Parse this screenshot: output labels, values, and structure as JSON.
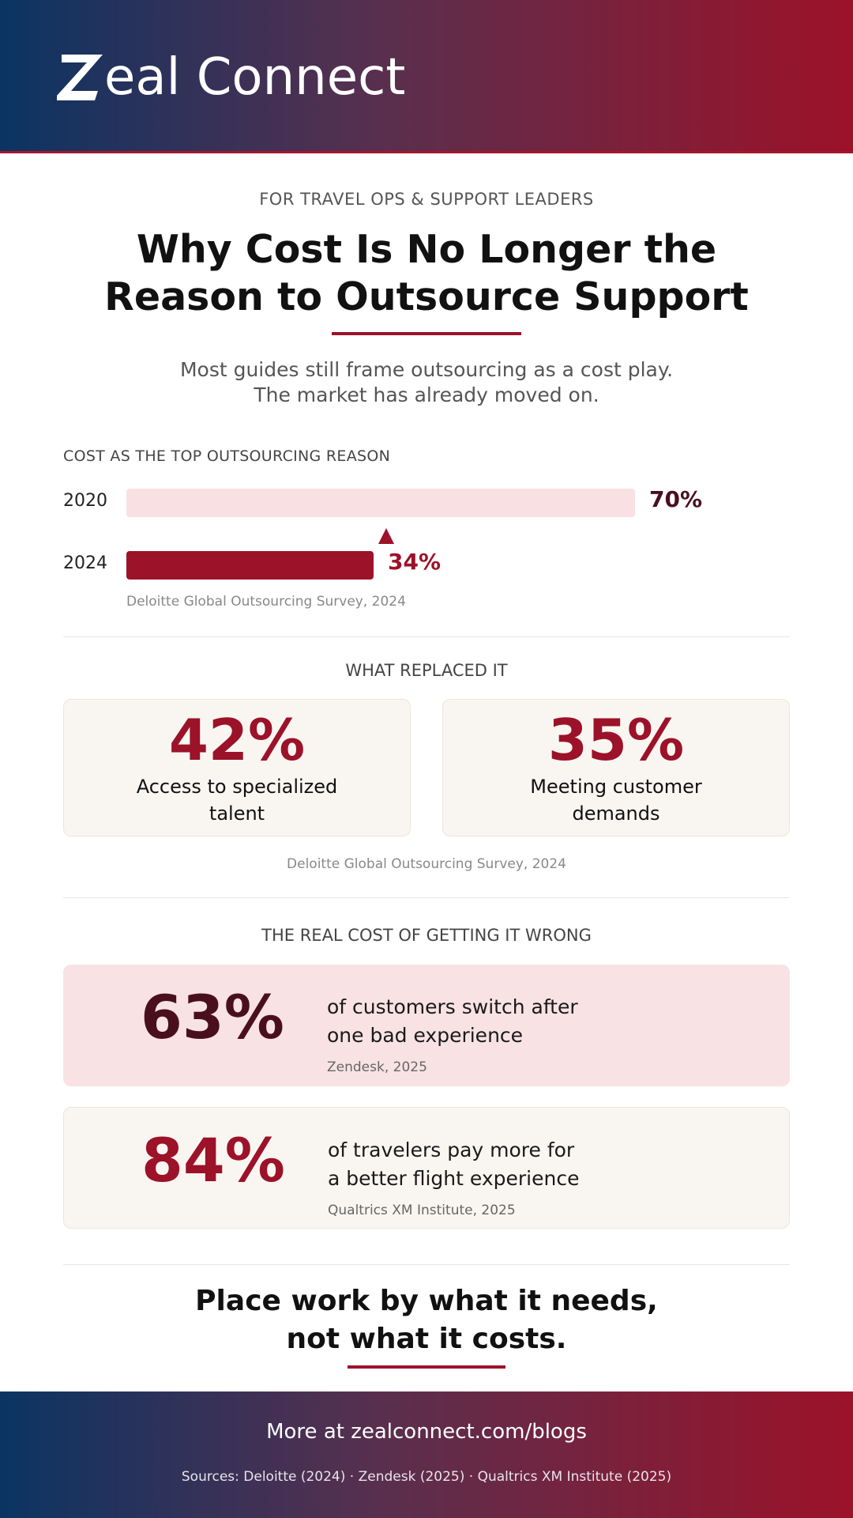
{
  "brand": {
    "logo_text": "eal Connect",
    "logo_mark": "Z"
  },
  "header": {
    "eyebrow": "FOR TRAVEL OPS & SUPPORT LEADERS",
    "title_line1": "Why Cost Is No Longer the",
    "title_line2": "Reason to Outsource Support",
    "subtitle_line1": "Most guides still frame outsourcing as a cost play.",
    "subtitle_line2": "The market has already moved on."
  },
  "cost_section": {
    "label": "COST AS THE TOP OUTSOURCING REASON",
    "source": "Deloitte Global Outsourcing Survey, 2024"
  },
  "chart_data": {
    "type": "bar",
    "orientation": "horizontal",
    "categories": [
      "2020",
      "2024"
    ],
    "values": [
      70,
      34
    ],
    "value_labels": [
      "70%",
      "34%"
    ],
    "title": "COST AS THE TOP OUTSOURCING REASON",
    "xlim": [
      0,
      100
    ],
    "colors": [
      "#f8e0e3",
      "#9c1229"
    ],
    "label_colors": [
      "#4a0f1e",
      "#9c1229"
    ]
  },
  "replaced": {
    "label": "WHAT REPLACED IT",
    "cards": [
      {
        "value": "42%",
        "label_line1": "Access to specialized",
        "label_line2": "talent"
      },
      {
        "value": "35%",
        "label_line1": "Meeting customer",
        "label_line2": "demands"
      }
    ],
    "source": "Deloitte Global Outsourcing Survey, 2024"
  },
  "real_cost": {
    "label": "THE REAL COST OF GETTING IT WRONG",
    "stats": [
      {
        "value": "63%",
        "text_line1": "of customers switch after",
        "text_line2": "one bad experience",
        "source": "Zendesk, 2025",
        "color": "#4a0f1e"
      },
      {
        "value": "84%",
        "text_line1": "of travelers pay more for",
        "text_line2": "a better flight experience",
        "source": "Qualtrics XM Institute, 2025",
        "color": "#9c1229"
      }
    ]
  },
  "closing": {
    "line1": "Place work by what it needs,",
    "line2": "not what it costs."
  },
  "footer": {
    "cta": "More at zealconnect.com/blogs",
    "sources": "Sources: Deloitte (2024) · Zendesk (2025) · Qualtrics XM Institute (2025)"
  },
  "colors": {
    "accent": "#9c1229",
    "navy": "#0b3463",
    "pink_bg": "#f8e2e4",
    "cream_bg": "#f9f6f1"
  }
}
